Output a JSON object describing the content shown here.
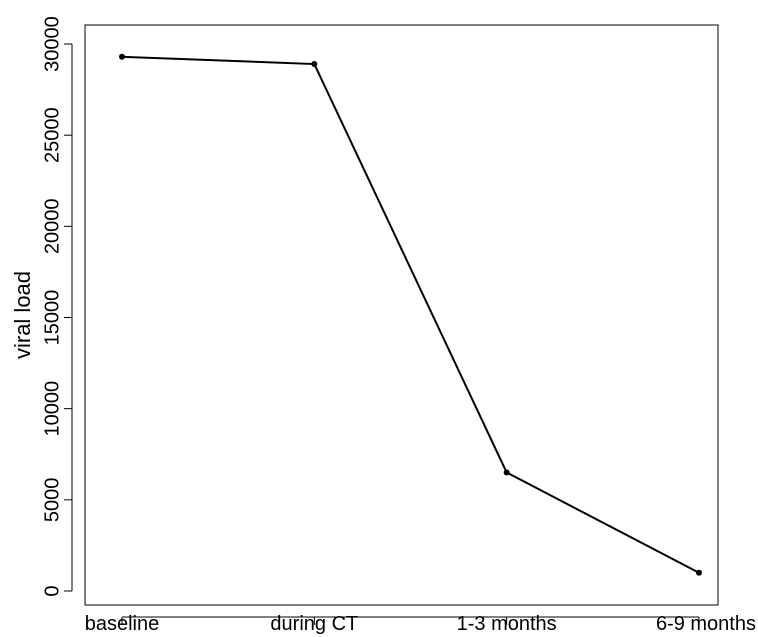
{
  "chart_data": {
    "type": "line",
    "title": "",
    "xlabel": "",
    "ylabel": "viral load",
    "categories": [
      "baseline",
      "during CT",
      "1-3 months",
      "6-9 months"
    ],
    "series": [
      {
        "values": [
          29300,
          28900,
          6500,
          1000
        ]
      }
    ],
    "ylim": [
      0,
      30000
    ],
    "yticks": [
      0,
      5000,
      10000,
      15000,
      20000,
      25000,
      30000
    ],
    "ytick_labels": [
      "0",
      "5000",
      "10000",
      "15000",
      "20000",
      "25000",
      "30000"
    ],
    "grid": false,
    "legend": "none",
    "line_color": "#000000",
    "marker": "dot"
  }
}
